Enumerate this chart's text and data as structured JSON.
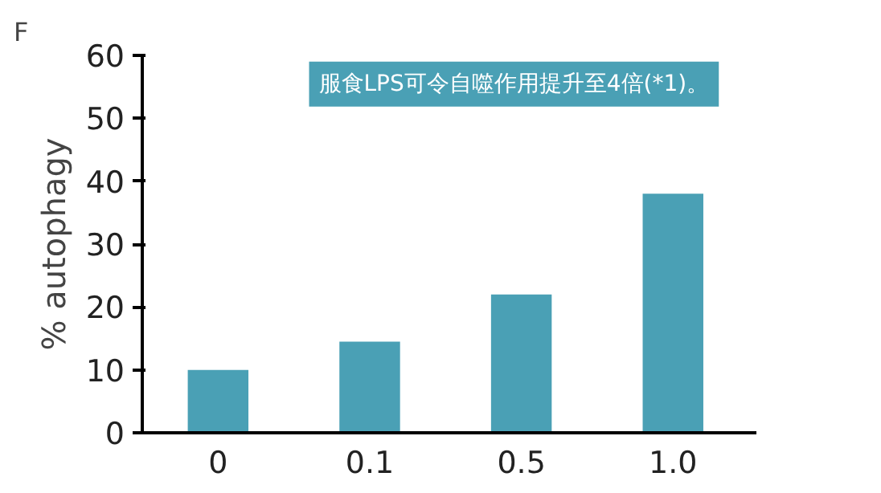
{
  "chart_data": {
    "type": "bar",
    "title": "F",
    "ylabel": "% autophagy",
    "categories": [
      "0",
      "0.1",
      "0.5",
      "1.0"
    ],
    "values": [
      10,
      14.5,
      22,
      38
    ],
    "color": "#4aa0b5",
    "ylim": [
      0,
      60
    ],
    "yticks": [
      0,
      10,
      20,
      30,
      40,
      50,
      60
    ],
    "grid": false,
    "annotations": [
      "服食LPS可令自噬作用提升至4倍(*1)。"
    ]
  }
}
